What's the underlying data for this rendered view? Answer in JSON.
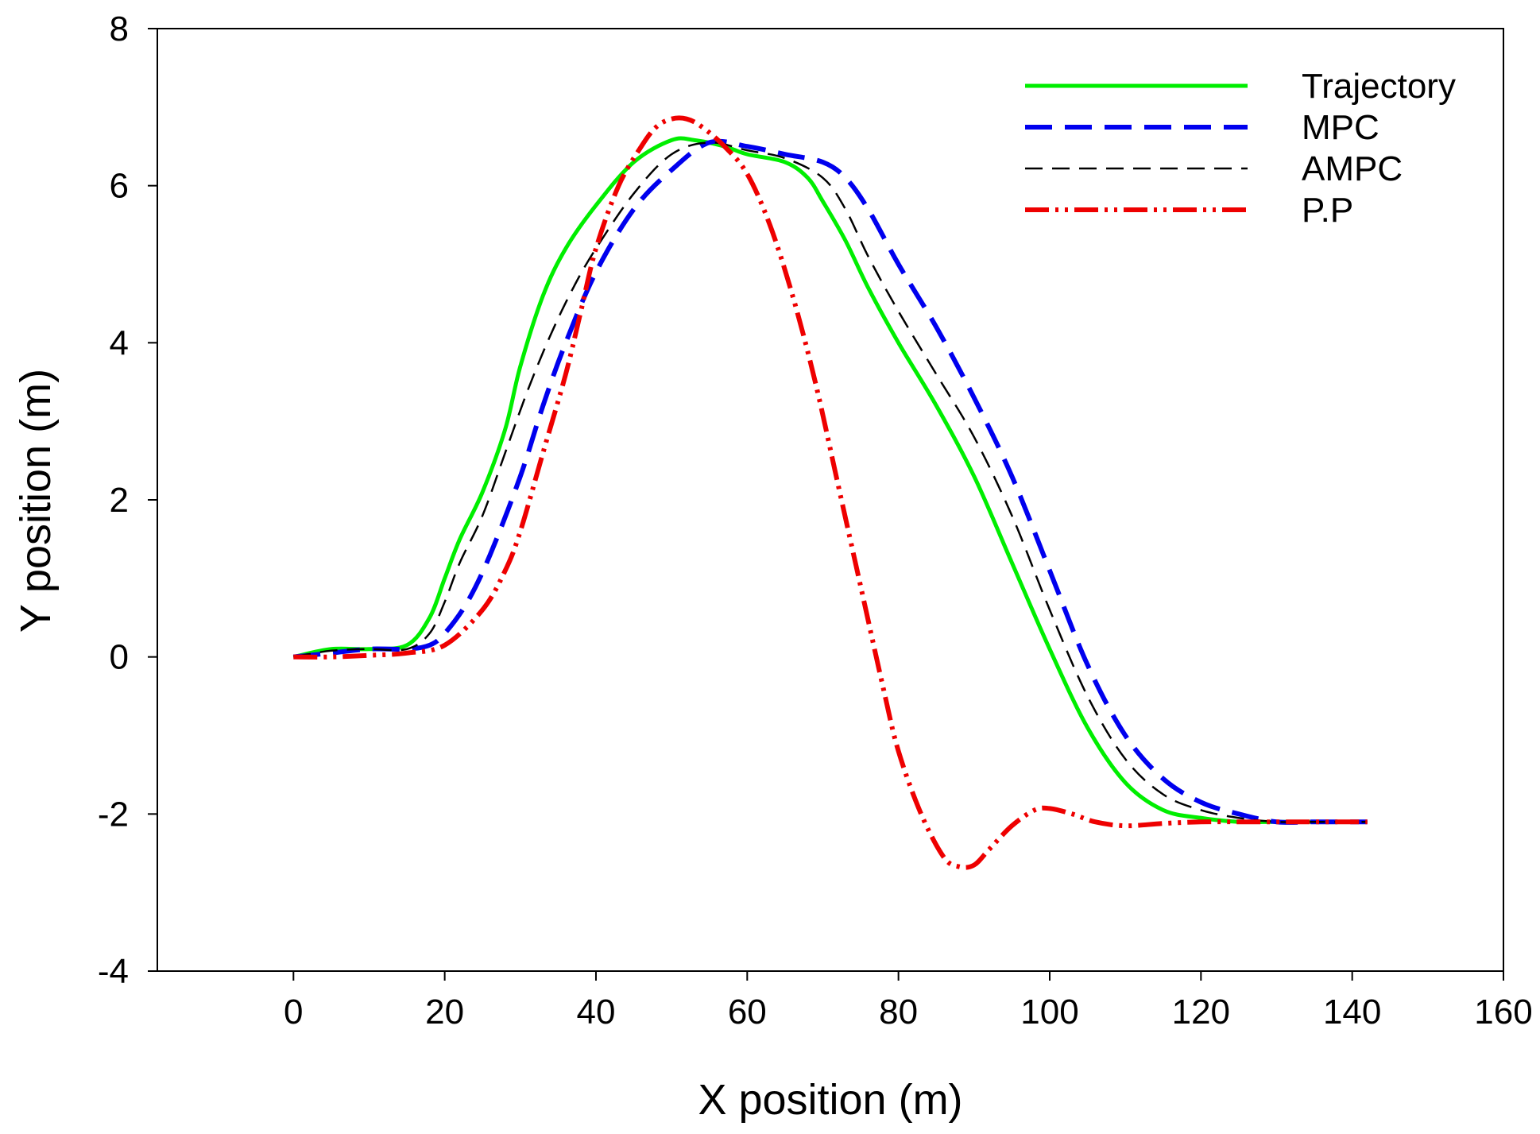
{
  "chart_data": {
    "type": "line",
    "title": "",
    "xlabel": "X position (m)",
    "ylabel": "Y position (m)",
    "xlim": [
      -18,
      160
    ],
    "ylim": [
      -4,
      8
    ],
    "xticks": [
      0,
      20,
      40,
      60,
      80,
      100,
      120,
      140,
      160
    ],
    "yticks": [
      -4,
      -2,
      0,
      2,
      4,
      6,
      8
    ],
    "grid": false,
    "legend_position": "top-right",
    "series": [
      {
        "name": "Trajectory",
        "color": "#00ee00",
        "style": "solid",
        "x": [
          0,
          5,
          10,
          15,
          18,
          20,
          22,
          25,
          28,
          30,
          33,
          36,
          40,
          45,
          50,
          53,
          57,
          60,
          65,
          68,
          70,
          73,
          76,
          80,
          85,
          90,
          95,
          100,
          105,
          110,
          115,
          120,
          125,
          130,
          135,
          140,
          142
        ],
        "y": [
          0,
          0.1,
          0.1,
          0.15,
          0.5,
          1.0,
          1.5,
          2.1,
          2.9,
          3.7,
          4.6,
          5.2,
          5.75,
          6.3,
          6.58,
          6.58,
          6.5,
          6.4,
          6.3,
          6.1,
          5.8,
          5.3,
          4.7,
          4.0,
          3.2,
          2.3,
          1.2,
          0.1,
          -0.9,
          -1.6,
          -1.95,
          -2.05,
          -2.1,
          -2.1,
          -2.1,
          -2.1,
          -2.1
        ]
      },
      {
        "name": "MPC",
        "color": "#0000ee",
        "style": "dashed",
        "x": [
          0,
          5,
          10,
          15,
          18,
          20,
          23,
          26,
          30,
          33,
          36,
          40,
          45,
          50,
          55,
          60,
          65,
          70,
          73,
          76,
          80,
          85,
          90,
          95,
          100,
          105,
          110,
          115,
          120,
          125,
          130,
          135,
          140,
          142
        ],
        "y": [
          0,
          0.05,
          0.1,
          0.1,
          0.15,
          0.3,
          0.7,
          1.3,
          2.3,
          3.2,
          4.0,
          4.9,
          5.7,
          6.2,
          6.55,
          6.5,
          6.4,
          6.3,
          6.1,
          5.7,
          5.0,
          4.2,
          3.3,
          2.3,
          1.1,
          -0.1,
          -1.0,
          -1.55,
          -1.85,
          -2.0,
          -2.1,
          -2.1,
          -2.1,
          -2.1
        ]
      },
      {
        "name": "AMPC",
        "color": "#000000",
        "style": "dashed-thin",
        "x": [
          0,
          5,
          10,
          15,
          18,
          20,
          22,
          25,
          28,
          31,
          34,
          37,
          40,
          45,
          50,
          55,
          60,
          65,
          70,
          73,
          76,
          80,
          85,
          90,
          95,
          100,
          105,
          110,
          115,
          120,
          125,
          130,
          135,
          140,
          142
        ],
        "y": [
          0,
          0.08,
          0.1,
          0.1,
          0.3,
          0.7,
          1.2,
          1.8,
          2.6,
          3.4,
          4.1,
          4.7,
          5.2,
          5.9,
          6.4,
          6.55,
          6.45,
          6.35,
          6.1,
          5.7,
          5.1,
          4.4,
          3.6,
          2.8,
          1.8,
          0.6,
          -0.5,
          -1.3,
          -1.75,
          -1.95,
          -2.05,
          -2.1,
          -2.1,
          -2.1,
          -2.1
        ]
      },
      {
        "name": "P.P",
        "color": "#ee0000",
        "style": "dash-dot-dot",
        "x": [
          0,
          5,
          10,
          15,
          20,
          25,
          28,
          30,
          33,
          36,
          38,
          40,
          43,
          46,
          48,
          50,
          52,
          54,
          57,
          60,
          63,
          66,
          69,
          72,
          75,
          78,
          80,
          83,
          86,
          88,
          90,
          92,
          95,
          98,
          100,
          103,
          106,
          110,
          115,
          120,
          125,
          130,
          135,
          140,
          142
        ],
        "y": [
          0,
          0,
          0.02,
          0.05,
          0.15,
          0.6,
          1.1,
          1.6,
          2.6,
          3.6,
          4.4,
          5.2,
          6.0,
          6.5,
          6.75,
          6.85,
          6.85,
          6.75,
          6.5,
          6.15,
          5.5,
          4.6,
          3.5,
          2.2,
          0.9,
          -0.4,
          -1.2,
          -2.0,
          -2.55,
          -2.67,
          -2.65,
          -2.45,
          -2.15,
          -1.95,
          -1.93,
          -2.0,
          -2.1,
          -2.15,
          -2.12,
          -2.1,
          -2.1,
          -2.1,
          -2.1,
          -2.1,
          -2.1
        ]
      }
    ]
  }
}
